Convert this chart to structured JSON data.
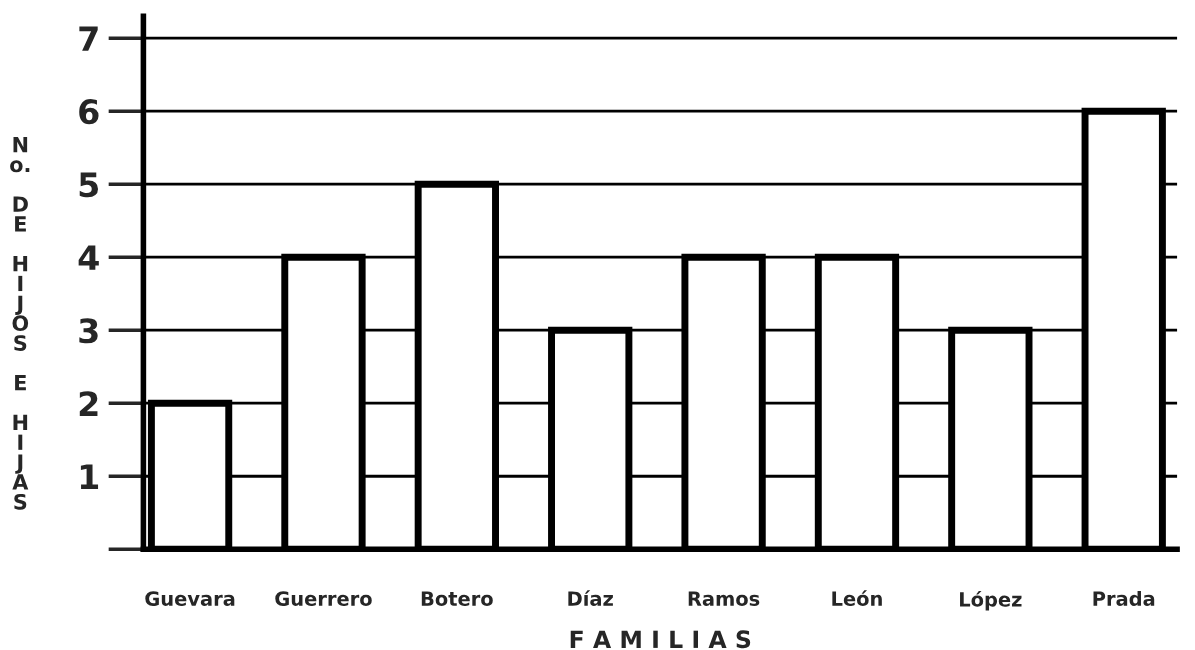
{
  "chart_data": {
    "type": "bar",
    "categories": [
      "Guevara",
      "Guerrero",
      "Botero",
      "Díaz",
      "Ramos",
      "León",
      "López",
      "Prada"
    ],
    "values": [
      2,
      4,
      5,
      3,
      4,
      4,
      3,
      6
    ],
    "color": "#ffffff",
    "ylabel": "No. DE HIJOS E HIJAS",
    "xlabel": "F A M I L I A S",
    "ylim": [
      0,
      7.3
    ],
    "yticks": [
      {
        "value": 0,
        "label": null
      },
      1,
      2,
      3,
      4,
      5,
      6,
      7
    ],
    "grid": "y"
  }
}
